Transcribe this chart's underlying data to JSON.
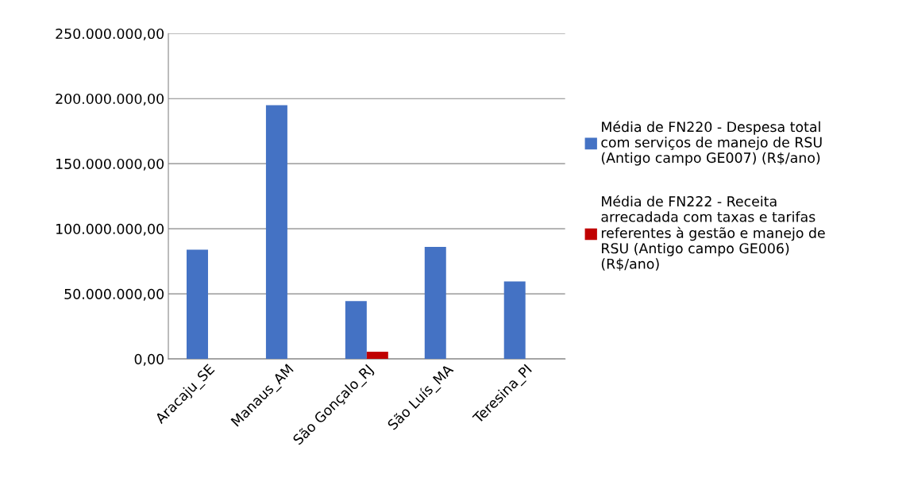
{
  "chart_data": {
    "type": "bar",
    "categories": [
      "Aracaju_SE",
      "Manaus_AM",
      "São Gonçalo_RJ",
      "São Luís_MA",
      "Teresina_PI"
    ],
    "series": [
      {
        "name": "Média de FN220 - Despesa total com serviços de manejo de RSU (Antigo campo GE007) (R$/ano)",
        "color": "#4472c4",
        "values": [
          84000000,
          195000000,
          44500000,
          86000000,
          59500000
        ]
      },
      {
        "name": "Média de FN222 - Receita arrecadada com taxas e tarifas referentes à gestão e manejo de RSU (Antigo campo GE006) (R$/ano)",
        "color": "#c00000",
        "values": [
          null,
          null,
          5500000,
          null,
          null
        ]
      }
    ],
    "ylim": [
      0,
      250000000
    ],
    "yticks": [
      {
        "value": 0,
        "label": "0,00"
      },
      {
        "value": 50000000,
        "label": "50.000.000,00"
      },
      {
        "value": 100000000,
        "label": "100.000.000,00"
      },
      {
        "value": 150000000,
        "label": "150.000.000,00"
      },
      {
        "value": 200000000,
        "label": "200.000.000,00"
      },
      {
        "value": 250000000,
        "label": "250.000.000,00"
      }
    ],
    "grid": "y",
    "legend": "right"
  }
}
